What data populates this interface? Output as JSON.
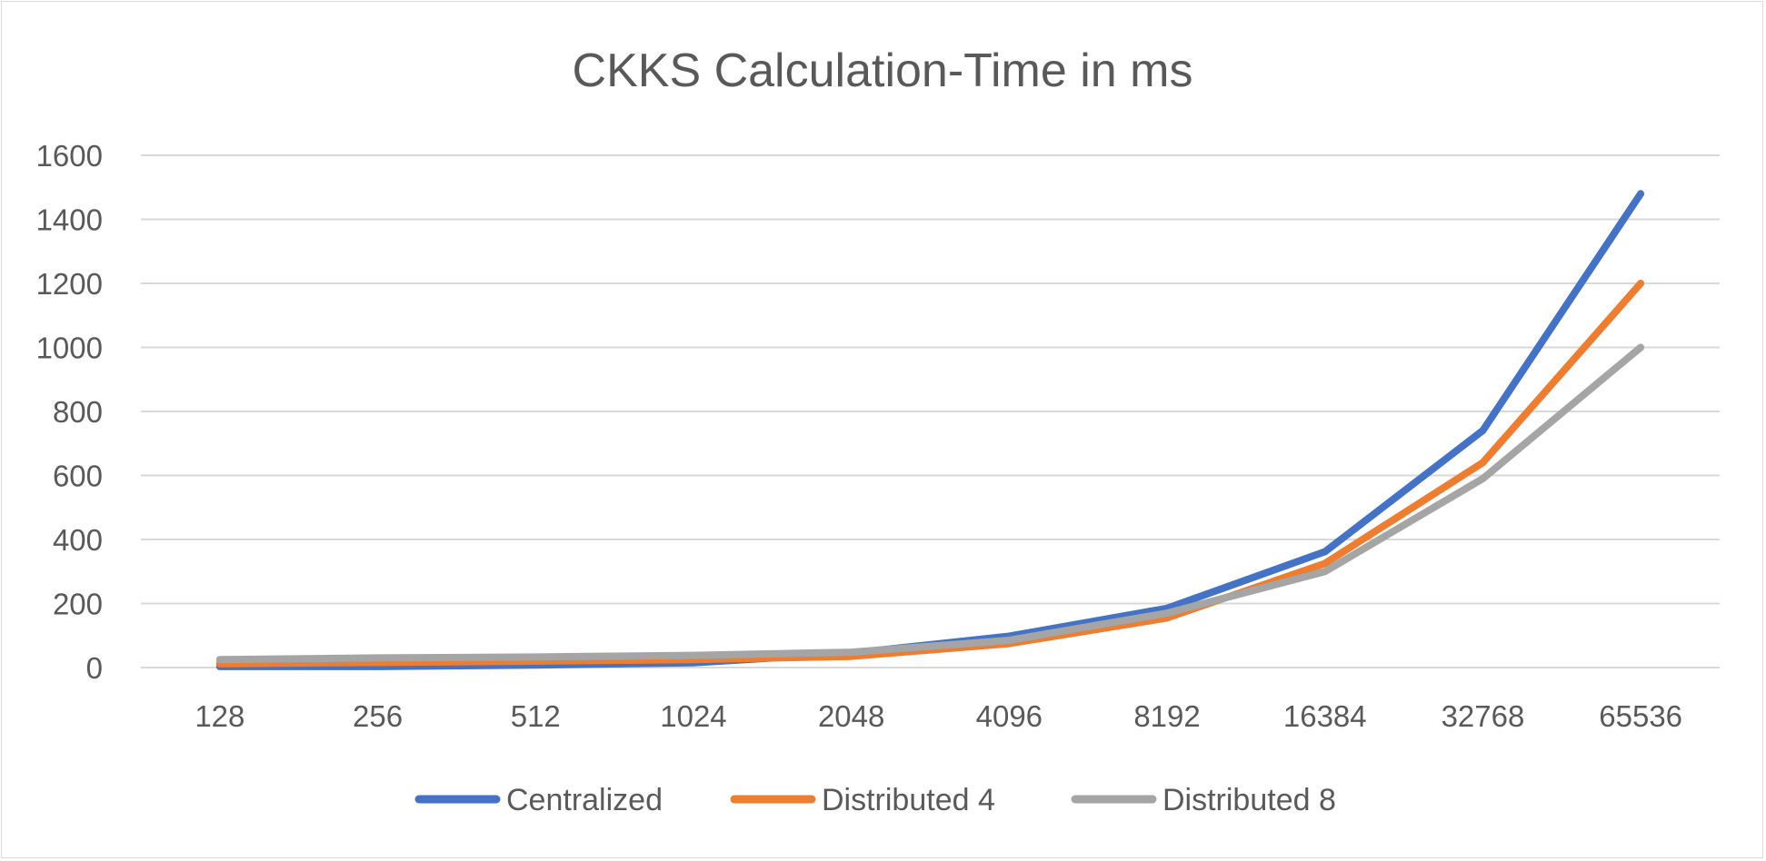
{
  "chart_data": {
    "type": "line",
    "title": "CKKS Calculation-Time in ms",
    "xlabel": "",
    "ylabel": "",
    "categories": [
      "128",
      "256",
      "512",
      "1024",
      "2048",
      "4096",
      "8192",
      "16384",
      "32768",
      "65536"
    ],
    "ylim": [
      0,
      1600
    ],
    "yticks": [
      0,
      200,
      400,
      600,
      800,
      1000,
      1200,
      1400,
      1600
    ],
    "grid": true,
    "legend_position": "bottom",
    "series": [
      {
        "name": "Centralized",
        "color": "#4472c4",
        "values": [
          3,
          3,
          8,
          15,
          45,
          98,
          185,
          362,
          740,
          1480
        ]
      },
      {
        "name": "Distributed 4",
        "color": "#ed7d31",
        "values": [
          12,
          16,
          20,
          25,
          35,
          75,
          155,
          325,
          640,
          1200
        ]
      },
      {
        "name": "Distributed 8",
        "color": "#a5a5a5",
        "values": [
          25,
          30,
          33,
          38,
          48,
          85,
          170,
          300,
          590,
          1000
        ]
      }
    ]
  }
}
